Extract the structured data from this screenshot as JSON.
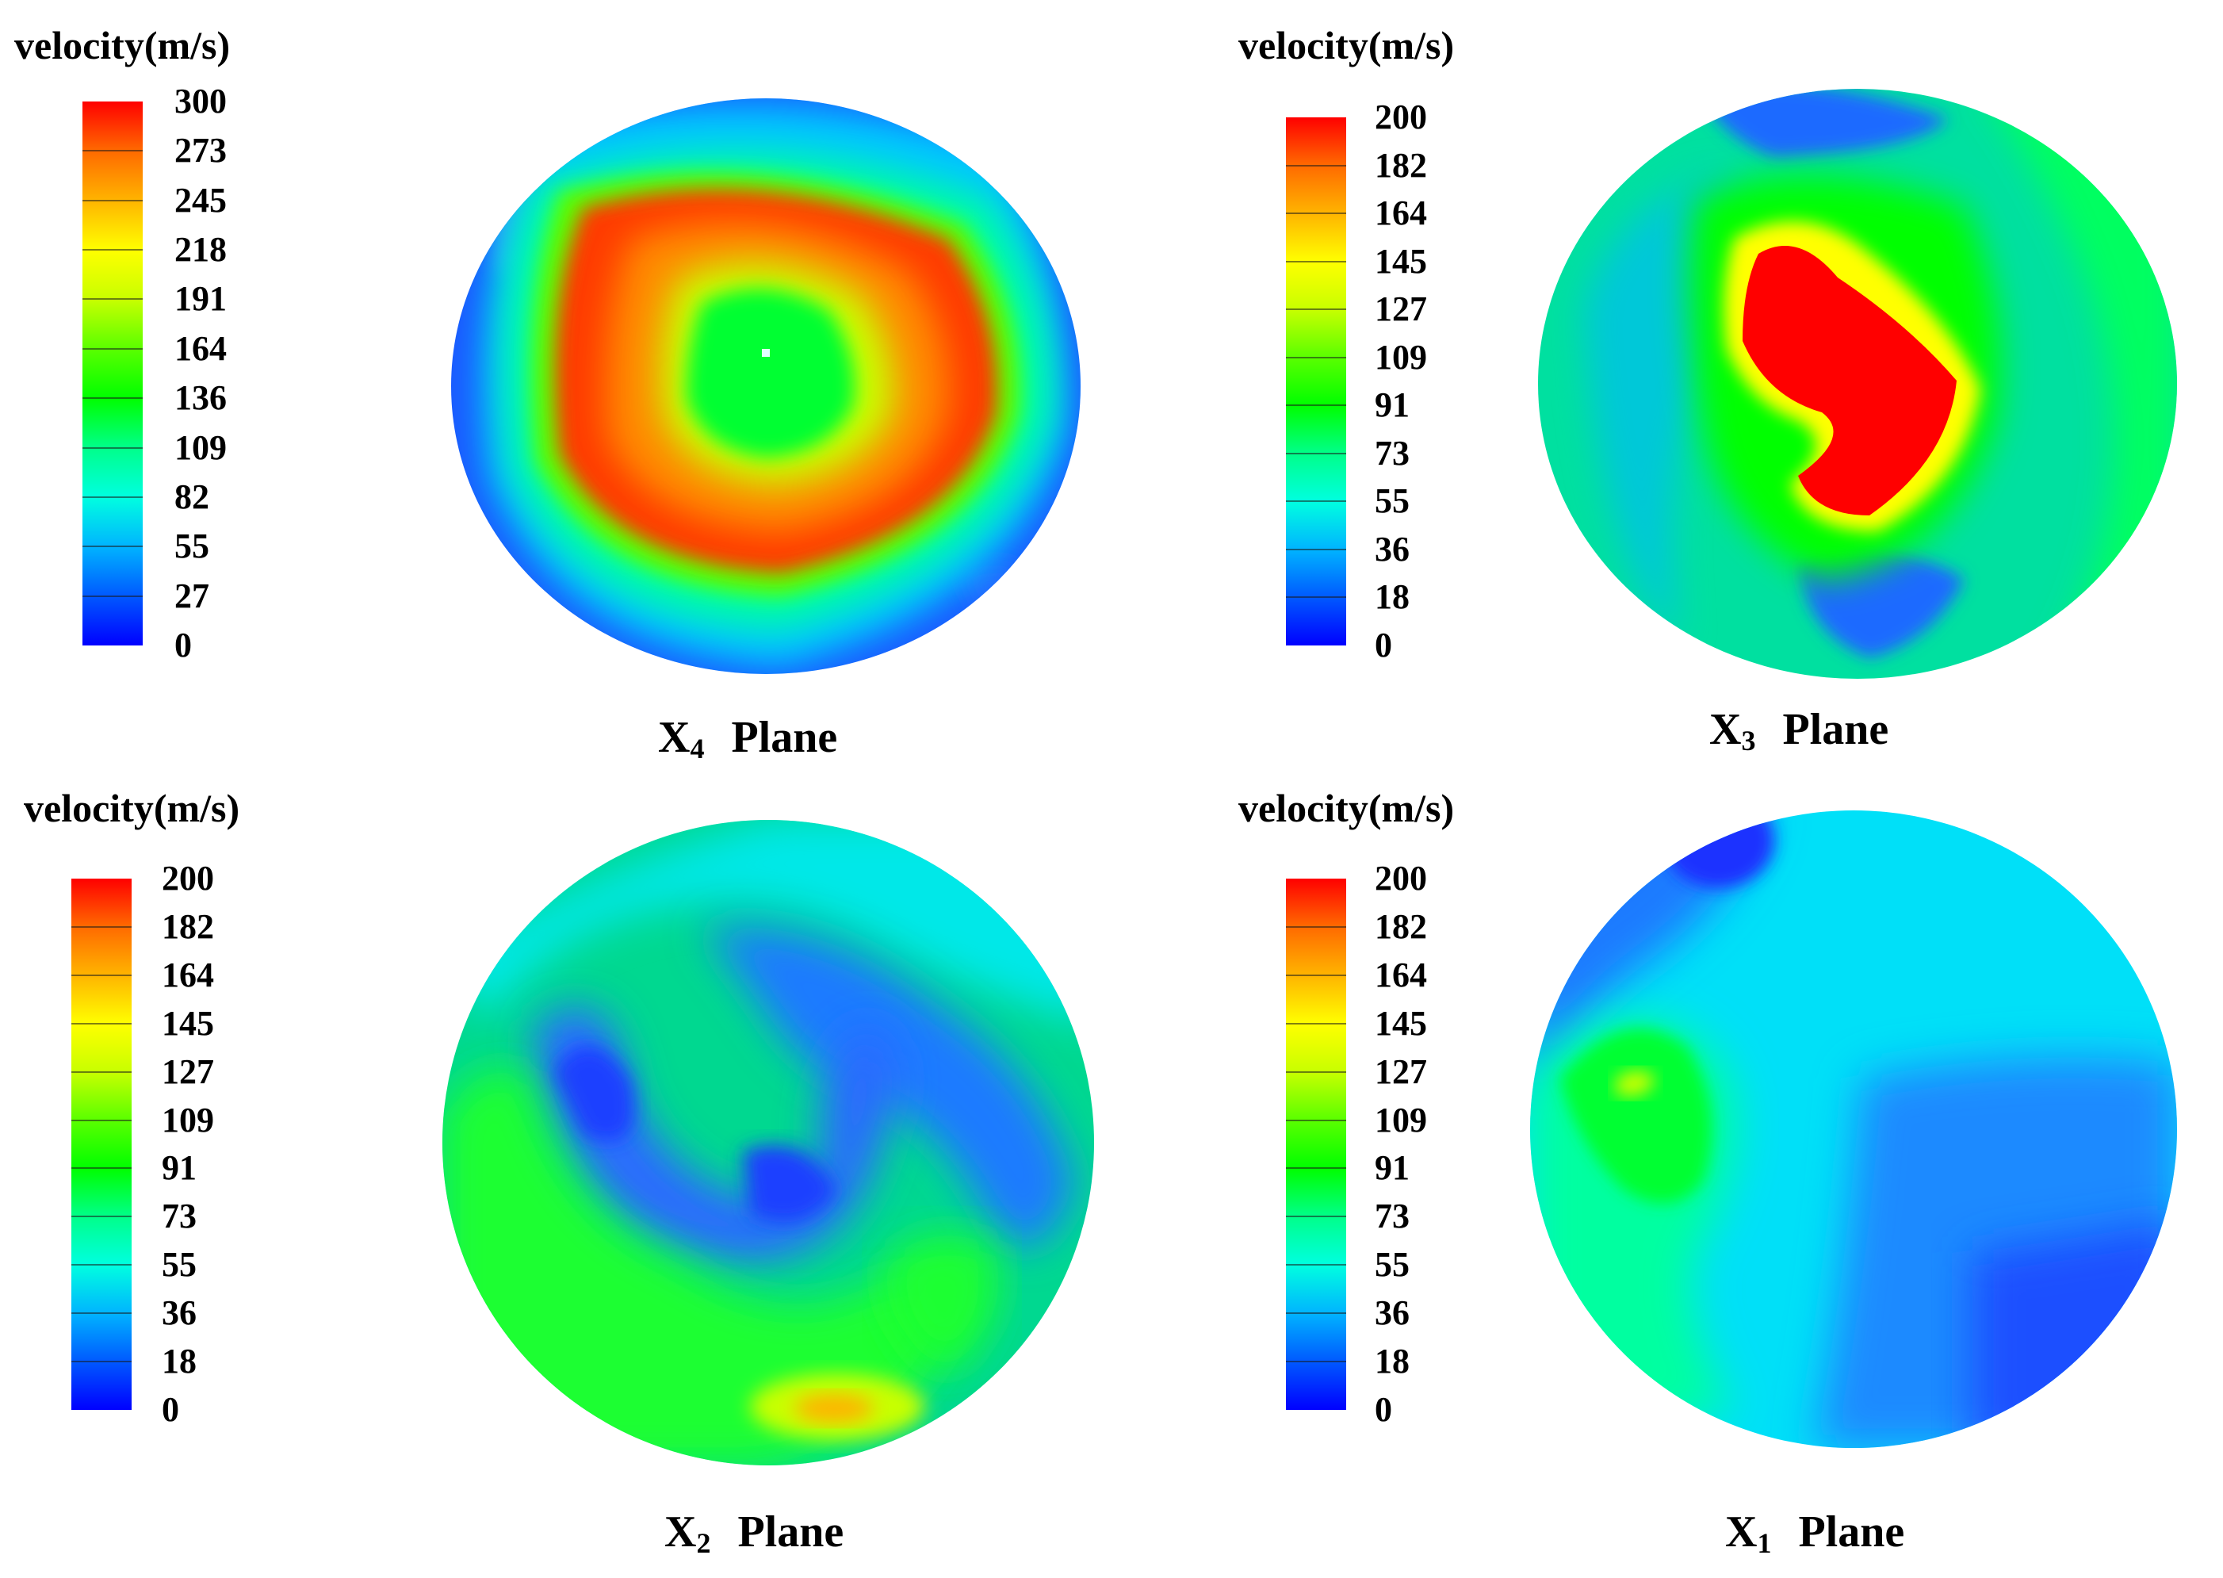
{
  "colorscale": [
    "#0000ff",
    "#0059ff",
    "#00b4ff",
    "#00ffe0",
    "#00ff8a",
    "#00ff00",
    "#5aff00",
    "#c8ff00",
    "#ffff00",
    "#ffb400",
    "#ff6a00",
    "#ff0000"
  ],
  "chart_data": [
    {
      "type": "heatmap",
      "legend_title": "velocity(m/s)",
      "plane_name": "X",
      "plane_subscript": "4",
      "plane_word": "Plane",
      "vmin": 0,
      "vmax": 300,
      "ticks": [
        "300",
        "273",
        "245",
        "218",
        "191",
        "164",
        "136",
        "109",
        "82",
        "55",
        "27",
        "0"
      ],
      "pattern": "annular high-velocity ring around a green core, low velocity near wall"
    },
    {
      "type": "heatmap",
      "legend_title": "velocity(m/s)",
      "plane_name": "X",
      "plane_subscript": "3",
      "plane_word": "Plane",
      "vmin": 0,
      "vmax": 200,
      "ticks": [
        "200",
        "182",
        "164",
        "145",
        "127",
        "109",
        "91",
        "73",
        "55",
        "36",
        "18",
        "0"
      ],
      "pattern": "red high-velocity core in upper-center, green surroundings, blue near upper and lower wall"
    },
    {
      "type": "heatmap",
      "legend_title": "velocity(m/s)",
      "plane_name": "X",
      "plane_subscript": "2",
      "plane_word": "Plane",
      "vmin": 0,
      "vmax": 200,
      "ticks": [
        "200",
        "182",
        "164",
        "145",
        "127",
        "109",
        "91",
        "73",
        "55",
        "36",
        "18",
        "0"
      ],
      "pattern": "swirling green and blue bands, small yellow spot near bottom"
    },
    {
      "type": "heatmap",
      "legend_title": "velocity(m/s)",
      "plane_name": "X",
      "plane_subscript": "1",
      "plane_word": "Plane",
      "vmin": 0,
      "vmax": 200,
      "ticks": [
        "200",
        "182",
        "164",
        "145",
        "127",
        "109",
        "91",
        "73",
        "55",
        "36",
        "18",
        "0"
      ],
      "pattern": "mostly cyan and blue, green region on left with small yellow spot"
    }
  ]
}
